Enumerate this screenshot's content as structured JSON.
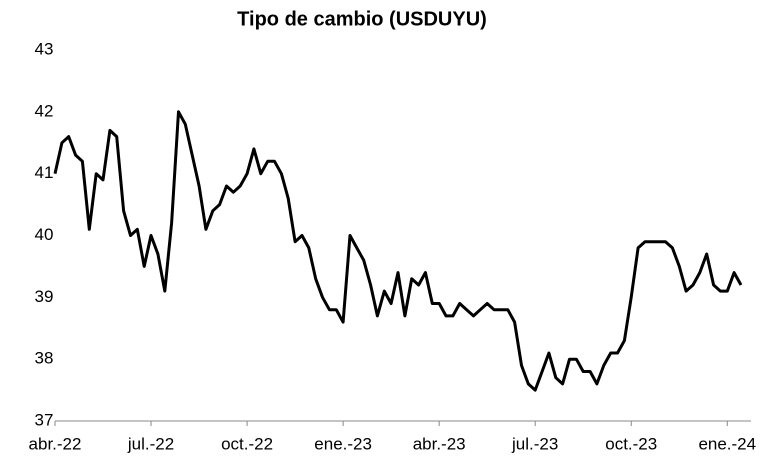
{
  "chart_data": {
    "type": "line",
    "title": "Tipo de cambio (USDUYU)",
    "categories": [
      "abr.-22",
      null,
      null,
      null,
      null,
      null,
      null,
      null,
      null,
      null,
      null,
      null,
      null,
      null,
      "jul.-22",
      null,
      null,
      null,
      null,
      null,
      null,
      null,
      null,
      null,
      null,
      null,
      null,
      null,
      "oct.-22",
      null,
      null,
      null,
      null,
      null,
      null,
      null,
      null,
      null,
      null,
      null,
      null,
      null,
      "ene.-23",
      null,
      null,
      null,
      null,
      null,
      null,
      null,
      null,
      null,
      null,
      null,
      null,
      null,
      "abr.-23",
      null,
      null,
      null,
      null,
      null,
      null,
      null,
      null,
      null,
      null,
      null,
      null,
      null,
      "jul.-23",
      null,
      null,
      null,
      null,
      null,
      null,
      null,
      null,
      null,
      null,
      null,
      null,
      null,
      "oct.-23",
      null,
      null,
      null,
      null,
      null,
      null,
      null,
      null,
      null,
      null,
      null,
      null,
      null,
      "ene.-24",
      null,
      null
    ],
    "series": [
      {
        "name": "USDUYU",
        "color": "#000000",
        "values": [
          41.0,
          41.5,
          41.6,
          41.3,
          41.2,
          40.1,
          41.0,
          40.9,
          41.7,
          41.6,
          40.4,
          40.0,
          40.1,
          39.5,
          40.0,
          39.7,
          39.1,
          40.2,
          42.0,
          41.8,
          41.3,
          40.8,
          40.1,
          40.4,
          40.5,
          40.8,
          40.7,
          40.8,
          41.0,
          41.4,
          41.0,
          41.2,
          41.2,
          41.0,
          40.6,
          39.9,
          40.0,
          39.8,
          39.3,
          39.0,
          38.8,
          38.8,
          38.6,
          40.0,
          39.8,
          39.6,
          39.2,
          38.7,
          39.1,
          38.9,
          39.4,
          38.7,
          39.3,
          39.2,
          39.4,
          38.9,
          38.9,
          38.7,
          38.7,
          38.9,
          38.8,
          38.7,
          38.8,
          38.9,
          38.8,
          38.8,
          38.8,
          38.6,
          37.9,
          37.6,
          37.5,
          37.8,
          38.1,
          37.7,
          37.6,
          38.0,
          38.0,
          37.8,
          37.8,
          37.6,
          37.9,
          38.1,
          38.1,
          38.3,
          39.0,
          39.8,
          39.9,
          39.9,
          39.9,
          39.9,
          39.8,
          39.5,
          39.1,
          39.2,
          39.4,
          39.7,
          39.2,
          39.1,
          39.1,
          39.4,
          39.2
        ]
      }
    ],
    "ylim": [
      37,
      43
    ],
    "yticks": [
      37,
      38,
      39,
      40,
      41,
      42,
      43
    ],
    "grid": false
  }
}
